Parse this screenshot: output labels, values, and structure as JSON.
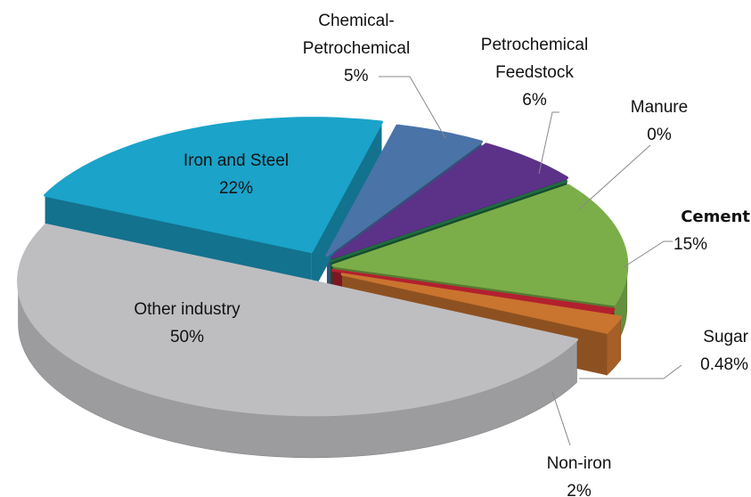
{
  "chart_data": {
    "type": "pie3d",
    "categories": [
      "Iron and Steel",
      "Chemical-Petrochemical",
      "Petrochemical Feedstock",
      "Manure",
      "Cement",
      "Sugar",
      "Non-iron",
      "Other industry"
    ],
    "values": [
      22,
      5,
      6,
      0,
      15,
      0.48,
      2,
      50
    ],
    "value_labels": [
      "22%",
      "5%",
      "6%",
      "0%",
      "15%",
      "0.48%",
      "2%",
      "50%"
    ],
    "colors": [
      "#1ba3c9",
      "#4a73a8",
      "#5c3289",
      "#1f6d40",
      "#7bae49",
      "#b2202f",
      "#c9742f",
      "#bebec1"
    ]
  }
}
